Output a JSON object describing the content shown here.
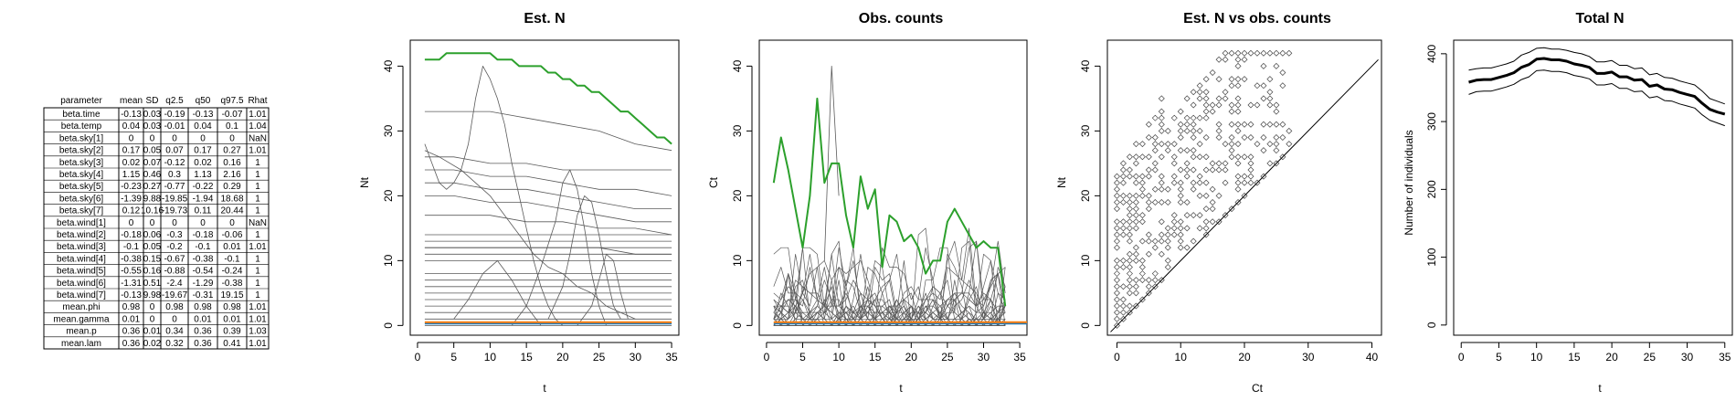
{
  "table": {
    "headers": [
      "parameter",
      "mean",
      "SD",
      "q2.5",
      "q50",
      "q97.5",
      "Rhat"
    ],
    "rows": [
      [
        "beta.time",
        "-0.13",
        "0.03",
        "-0.19",
        "-0.13",
        "-0.07",
        "1.01"
      ],
      [
        "beta.temp",
        "0.04",
        "0.03",
        "-0.01",
        "0.04",
        "0.1",
        "1.04"
      ],
      [
        "beta.sky[1]",
        "0",
        "0",
        "0",
        "0",
        "0",
        "NaN"
      ],
      [
        "beta.sky[2]",
        "0.17",
        "0.05",
        "0.07",
        "0.17",
        "0.27",
        "1.01"
      ],
      [
        "beta.sky[3]",
        "0.02",
        "0.07",
        "-0.12",
        "0.02",
        "0.16",
        "1"
      ],
      [
        "beta.sky[4]",
        "1.15",
        "0.46",
        "0.3",
        "1.13",
        "2.16",
        "1"
      ],
      [
        "beta.sky[5]",
        "-0.23",
        "0.27",
        "-0.77",
        "-0.22",
        "0.29",
        "1"
      ],
      [
        "beta.sky[6]",
        "-1.39",
        "9.88",
        "-19.85",
        "-1.94",
        "18.68",
        "1"
      ],
      [
        "beta.sky[7]",
        "0.12",
        "10.16",
        "-19.73",
        "0.11",
        "20.44",
        "1"
      ],
      [
        "beta.wind[1]",
        "0",
        "0",
        "0",
        "0",
        "0",
        "NaN"
      ],
      [
        "beta.wind[2]",
        "-0.18",
        "0.06",
        "-0.3",
        "-0.18",
        "-0.06",
        "1"
      ],
      [
        "beta.wind[3]",
        "-0.1",
        "0.05",
        "-0.2",
        "-0.1",
        "0.01",
        "1.01"
      ],
      [
        "beta.wind[4]",
        "-0.38",
        "0.15",
        "-0.67",
        "-0.38",
        "-0.1",
        "1"
      ],
      [
        "beta.wind[5]",
        "-0.55",
        "0.16",
        "-0.88",
        "-0.54",
        "-0.24",
        "1"
      ],
      [
        "beta.wind[6]",
        "-1.31",
        "0.51",
        "-2.4",
        "-1.29",
        "-0.38",
        "1"
      ],
      [
        "beta.wind[7]",
        "-0.13",
        "9.98",
        "-19.67",
        "-0.31",
        "19.15",
        "1"
      ],
      [
        "mean.phi",
        "0.98",
        "0",
        "0.98",
        "0.98",
        "0.98",
        "1.01"
      ],
      [
        "mean.gamma",
        "0.01",
        "0",
        "0",
        "0.01",
        "0.01",
        "1.01"
      ],
      [
        "mean.p",
        "0.36",
        "0.01",
        "0.34",
        "0.36",
        "0.39",
        "1.03"
      ],
      [
        "mean.lam",
        "0.36",
        "0.02",
        "0.32",
        "0.36",
        "0.41",
        "1.01"
      ]
    ]
  },
  "colors": {
    "highlight": "#2ca02c",
    "baseline": "#ff7f0e",
    "baseline2": "#1f77b4",
    "gray": "#5a5a5a"
  },
  "chart_data": [
    {
      "type": "line",
      "title": "Est. N",
      "xlabel": "t",
      "ylabel": "Nt",
      "xlim": [
        0,
        35
      ],
      "ylim": [
        0,
        42
      ],
      "xticks": [
        "0",
        "5",
        "10",
        "15",
        "20",
        "25",
        "30",
        "35"
      ],
      "yticks": [
        "0",
        "10",
        "20",
        "30",
        "40"
      ],
      "highlight": {
        "x": [
          1,
          3,
          4,
          5,
          6,
          7,
          8,
          9,
          10,
          11,
          12,
          13,
          14,
          15,
          16,
          17,
          18,
          19,
          20,
          21,
          22,
          23,
          24,
          25,
          26,
          27,
          28,
          29,
          30,
          31,
          32,
          33,
          34,
          35
        ],
        "values": [
          41,
          41,
          42,
          42,
          42,
          42,
          42,
          42,
          42,
          41,
          41,
          41,
          40,
          40,
          40,
          40,
          39,
          39,
          38,
          38,
          37,
          37,
          36,
          36,
          35,
          34,
          33,
          33,
          32,
          31,
          30,
          29,
          29,
          28
        ]
      },
      "flat_lines": [
        0,
        1,
        2,
        3,
        4,
        5,
        6,
        7,
        8,
        10,
        11,
        12,
        13,
        14
      ],
      "gray_series": [
        {
          "x": [
            1,
            10,
            15,
            20,
            25,
            30,
            35
          ],
          "values": [
            33,
            33,
            32,
            31,
            30,
            28,
            27
          ]
        },
        {
          "x": [
            1,
            5,
            10,
            15,
            20,
            25,
            30,
            35
          ],
          "values": [
            26,
            26,
            25,
            25,
            24,
            24,
            24,
            24
          ]
        },
        {
          "x": [
            1,
            5,
            10,
            15,
            20,
            25,
            30,
            35
          ],
          "values": [
            24,
            24,
            23,
            23,
            22,
            21,
            21,
            20
          ]
        },
        {
          "x": [
            1,
            5,
            10,
            15,
            20,
            25,
            30,
            35
          ],
          "values": [
            22,
            22,
            21,
            21,
            20,
            19,
            18,
            18
          ]
        },
        {
          "x": [
            1,
            5,
            10,
            15,
            20,
            25,
            30,
            35
          ],
          "values": [
            20,
            20,
            19,
            19,
            18,
            17,
            16,
            16
          ]
        },
        {
          "x": [
            1,
            5,
            10,
            15,
            20,
            25,
            30,
            35
          ],
          "values": [
            17,
            17,
            17,
            16,
            16,
            15,
            15,
            14
          ]
        },
        {
          "x": [
            1,
            5,
            10,
            15,
            20,
            25,
            30,
            35
          ],
          "values": [
            12,
            12,
            12,
            12,
            12,
            12,
            11,
            11
          ]
        },
        {
          "x": [
            1,
            2,
            3,
            4,
            5,
            6,
            7,
            8,
            9,
            10,
            11,
            12,
            13,
            14,
            15,
            16,
            17,
            18,
            19,
            20
          ],
          "values": [
            28,
            25,
            22,
            21,
            22,
            24,
            28,
            35,
            40,
            38,
            35,
            31,
            25,
            20,
            15,
            10,
            6,
            3,
            1,
            0
          ]
        },
        {
          "x": [
            1,
            3,
            6,
            8,
            10,
            12,
            14,
            16,
            18,
            20,
            22,
            24,
            26,
            28,
            30
          ],
          "values": [
            27,
            26,
            24,
            22,
            20,
            17,
            14,
            11,
            9,
            8,
            6,
            5,
            3,
            2,
            1
          ]
        },
        {
          "x": [
            13,
            15,
            17,
            19,
            20,
            21,
            22,
            23,
            24,
            25,
            26
          ],
          "values": [
            0,
            3,
            9,
            16,
            22,
            24,
            21,
            15,
            8,
            3,
            0
          ]
        },
        {
          "x": [
            18,
            20,
            21,
            22,
            23,
            24,
            25,
            26,
            27,
            28
          ],
          "values": [
            1,
            6,
            11,
            17,
            20,
            19,
            14,
            8,
            3,
            1
          ]
        },
        {
          "x": [
            22,
            24,
            25,
            26,
            27,
            28,
            29
          ],
          "values": [
            0,
            3,
            7,
            11,
            10,
            5,
            1
          ]
        },
        {
          "x": [
            5,
            7,
            9,
            11,
            13,
            15,
            17
          ],
          "values": [
            1,
            4,
            8,
            10,
            7,
            3,
            0
          ]
        }
      ]
    },
    {
      "type": "line",
      "title": "Obs. counts",
      "xlabel": "t",
      "ylabel": "Ct",
      "xlim": [
        0,
        35
      ],
      "ylim": [
        0,
        42
      ],
      "xticks": [
        "0",
        "5",
        "10",
        "15",
        "20",
        "25",
        "30",
        "35"
      ],
      "yticks": [
        "0",
        "10",
        "20",
        "30",
        "40"
      ],
      "highlight": {
        "x": [
          1,
          2,
          3,
          4,
          5,
          6,
          7,
          8,
          9,
          10,
          11,
          12,
          13,
          14,
          15,
          16,
          17,
          18,
          19,
          20,
          21,
          22,
          23,
          24,
          25,
          26,
          27,
          28,
          29,
          30,
          31,
          32,
          33
        ],
        "values": [
          22,
          29,
          24,
          18,
          12,
          20,
          35,
          22,
          25,
          25,
          17,
          12,
          23,
          18,
          21,
          9,
          17,
          16,
          13,
          14,
          12,
          8,
          10,
          10,
          16,
          18,
          16,
          14,
          12,
          13,
          12,
          12,
          3
        ]
      },
      "spike": {
        "x": [
          8,
          9,
          10
        ],
        "values": [
          10,
          40,
          20
        ]
      }
    },
    {
      "type": "scatter",
      "title": "Est. N vs obs. counts",
      "xlabel": "Ct",
      "ylabel": "Nt",
      "xlim": [
        0,
        40
      ],
      "ylim": [
        0,
        42
      ],
      "xticks": [
        "0",
        "10",
        "20",
        "30",
        "40"
      ],
      "yticks": [
        "0",
        "10",
        "20",
        "30",
        "40"
      ],
      "diagonal": [
        [
          -1,
          -1
        ],
        [
          41,
          41
        ]
      ]
    },
    {
      "type": "line",
      "title": "Total N",
      "xlabel": "t",
      "ylabel": "Number of individuals",
      "xlim": [
        0,
        35
      ],
      "ylim": [
        0,
        410
      ],
      "xticks": [
        "0",
        "5",
        "10",
        "15",
        "20",
        "25",
        "30",
        "35"
      ],
      "yticks": [
        "0",
        "100",
        "200",
        "300",
        "400"
      ],
      "x": [
        1,
        2,
        3,
        4,
        5,
        6,
        7,
        8,
        9,
        10,
        11,
        12,
        13,
        14,
        15,
        16,
        17,
        18,
        19,
        20,
        21,
        22,
        23,
        24,
        25,
        26,
        27,
        28,
        29,
        30,
        31,
        32,
        33,
        34,
        35
      ],
      "series": [
        {
          "name": "",
          "values": [
            358,
            361,
            362,
            362,
            365,
            368,
            372,
            380,
            384,
            392,
            393,
            391,
            391,
            389,
            385,
            383,
            380,
            371,
            371,
            373,
            366,
            366,
            361,
            362,
            352,
            354,
            348,
            347,
            343,
            340,
            337,
            327,
            318,
            314,
            311
          ]
        },
        {
          "name": "",
          "values": [
            376,
            378,
            379,
            379,
            382,
            385,
            389,
            398,
            402,
            408,
            409,
            407,
            407,
            405,
            402,
            400,
            396,
            388,
            388,
            390,
            383,
            383,
            378,
            379,
            369,
            371,
            365,
            364,
            360,
            357,
            354,
            345,
            334,
            330,
            326
          ]
        },
        {
          "name": "",
          "values": [
            340,
            344,
            345,
            345,
            348,
            351,
            355,
            362,
            366,
            375,
            376,
            374,
            374,
            372,
            368,
            366,
            363,
            354,
            354,
            356,
            349,
            349,
            344,
            345,
            335,
            337,
            331,
            330,
            326,
            323,
            320,
            310,
            302,
            298,
            294
          ]
        }
      ]
    }
  ]
}
